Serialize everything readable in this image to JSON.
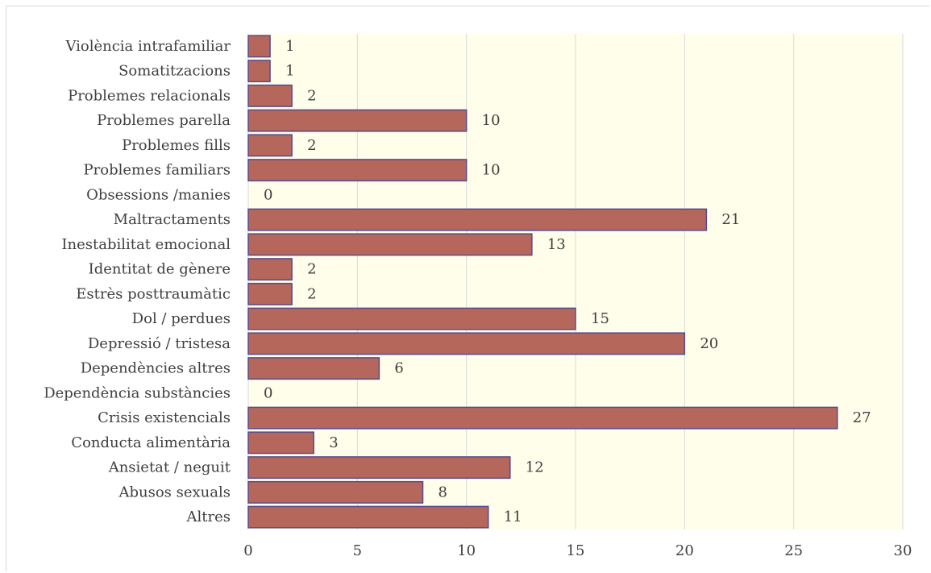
{
  "chart_data": {
    "type": "bar",
    "orientation": "horizontal",
    "title": "",
    "xlabel": "",
    "ylabel": "",
    "xlim": [
      0,
      30
    ],
    "x_ticks": [
      0,
      5,
      10,
      15,
      20,
      25,
      30
    ],
    "grid": "vertical",
    "legend": "none",
    "categories": [
      "Violència intrafamiliar",
      "Somatitzacions",
      "Problemes relacionals",
      "Problemes parella",
      "Problemes fills",
      "Problemes familiars",
      "Obsessions /manies",
      "Maltractaments",
      "Inestabilitat emocional",
      "Identitat de gènere",
      "Estrès posttraumàtic",
      "Dol / perdues",
      "Depressió / tristesa",
      "Dependències altres",
      "Dependència substàncies",
      "Crisis existencials",
      "Conducta alimentària",
      "Ansietat / neguit",
      "Abusos sexuals",
      "Altres"
    ],
    "values": [
      1,
      1,
      2,
      10,
      2,
      10,
      0,
      21,
      13,
      2,
      2,
      15,
      20,
      6,
      0,
      27,
      3,
      12,
      8,
      11
    ],
    "colors": {
      "bar_fill": "#b5675c",
      "bar_stroke": "#5a4a8a",
      "plot_background": "#fefeeb",
      "grid": "#d9d9d9",
      "text": "#404040"
    }
  }
}
